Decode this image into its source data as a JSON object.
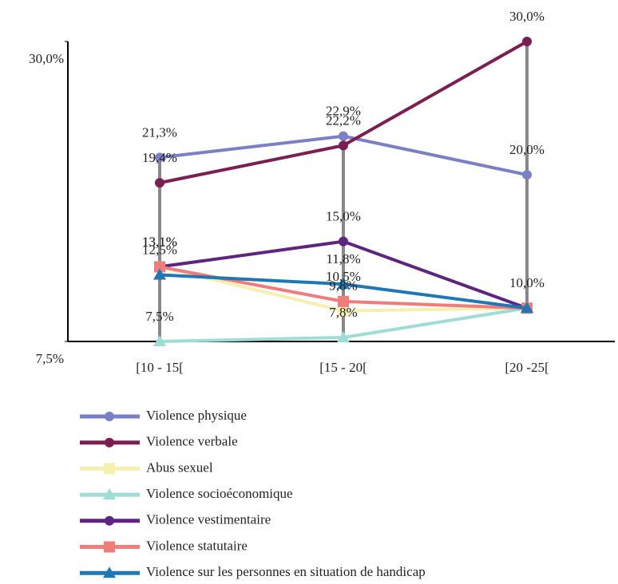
{
  "chart_data": {
    "type": "line",
    "categories": [
      "[10 - 15[",
      "[15 - 20[",
      "[20 -25["
    ],
    "ylim": [
      7.5,
      30
    ],
    "yticks": [
      {
        "value": 7.5,
        "label": "7,5%"
      },
      {
        "value": 30,
        "label": "30,0%"
      }
    ],
    "series": [
      {
        "name": "Violence physique",
        "color": "#7b7fc4",
        "marker": "circle",
        "values": [
          21.3,
          22.9,
          20.0
        ],
        "value_labels": [
          "21,3%",
          "22,9%",
          "20,0%"
        ]
      },
      {
        "name": "Violence verbale",
        "color": "#7b1e52",
        "marker": "circle",
        "values": [
          19.4,
          22.2,
          30.0
        ],
        "value_labels": [
          "19,4%",
          "22,2%",
          "30,0%"
        ]
      },
      {
        "name": "Abus sexuel",
        "color": "#f5efb0",
        "marker": "square",
        "values": [
          13.1,
          9.8,
          10.0
        ],
        "value_labels": [
          null,
          "9,8%",
          null
        ]
      },
      {
        "name": "Violence socioéconomique",
        "color": "#9fdcd6",
        "marker": "triangle",
        "values": [
          7.5,
          7.8,
          10.0
        ],
        "value_labels": [
          "7,5%",
          "7,8%",
          null
        ]
      },
      {
        "name": "Violence vestimentaire",
        "color": "#5e2580",
        "marker": "circle",
        "values": [
          13.1,
          15.0,
          10.0
        ],
        "value_labels": [
          "13,1%",
          "15,0%",
          "10,0%"
        ]
      },
      {
        "name": "Violence statutaire",
        "color": "#f07c7c",
        "marker": "square",
        "values": [
          13.1,
          10.5,
          10.0
        ],
        "value_labels": [
          "13,1%",
          "10,5%",
          null
        ]
      },
      {
        "name": "Violence sur les personnes en situation de handicap",
        "color": "#1f77b4",
        "marker": "triangle",
        "values": [
          12.5,
          11.8,
          10.0
        ],
        "value_labels": [
          "12,5%",
          "11,8%",
          null
        ]
      }
    ]
  }
}
